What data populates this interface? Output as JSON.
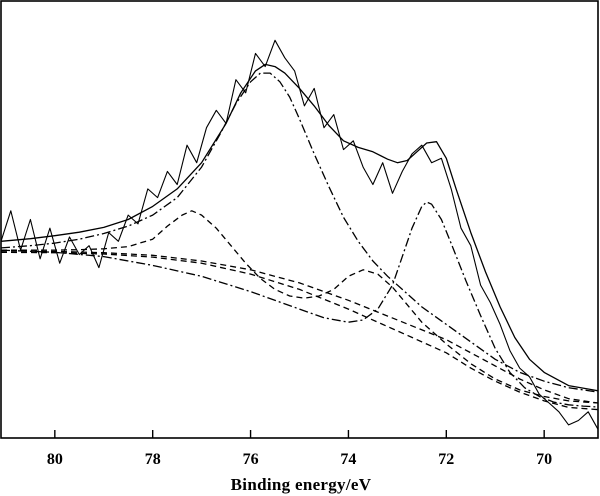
{
  "chart_data": {
    "type": "line",
    "title": "",
    "xlabel": "Binding energy/eV",
    "ylabel": "",
    "xlim": [
      81.1,
      68.9
    ],
    "ylim": [
      0,
      100
    ],
    "x_reversed": true,
    "grid": false,
    "legend": "none",
    "x_ticks": [
      {
        "value": 80,
        "label": "80"
      },
      {
        "value": 78,
        "label": "78"
      },
      {
        "value": 76,
        "label": "76"
      },
      {
        "value": 74,
        "label": "74"
      },
      {
        "value": 72,
        "label": "72"
      },
      {
        "value": 70,
        "label": "70"
      }
    ],
    "series": [
      {
        "name": "raw-spectrum",
        "style": "solid-noisy",
        "x": [
          81.1,
          80.9,
          80.7,
          80.5,
          80.3,
          80.1,
          79.9,
          79.7,
          79.5,
          79.3,
          79.1,
          78.9,
          78.7,
          78.5,
          78.3,
          78.1,
          77.9,
          77.7,
          77.5,
          77.3,
          77.1,
          76.9,
          76.7,
          76.5,
          76.3,
          76.1,
          75.9,
          75.7,
          75.5,
          75.3,
          75.1,
          74.9,
          74.7,
          74.5,
          74.3,
          74.1,
          73.9,
          73.7,
          73.5,
          73.3,
          73.1,
          72.9,
          72.7,
          72.5,
          72.3,
          72.1,
          71.9,
          71.7,
          71.5,
          71.3,
          71.1,
          70.9,
          70.7,
          70.5,
          70.3,
          70.1,
          69.9,
          69.7,
          69.5,
          69.3,
          69.1,
          68.9
        ],
        "y": [
          45,
          52,
          43,
          50,
          41,
          48,
          40,
          46,
          42,
          44,
          39,
          47,
          45,
          51,
          49,
          57,
          55,
          61,
          58,
          67,
          63,
          71,
          75,
          72,
          82,
          79,
          88,
          85,
          91,
          87,
          84,
          76,
          80,
          71,
          74,
          66,
          68,
          62,
          58,
          63,
          56,
          61,
          65,
          67,
          63,
          64,
          57,
          48,
          44,
          35,
          31,
          26,
          20,
          16,
          14,
          10,
          8,
          6,
          3,
          4,
          6,
          2
        ]
      },
      {
        "name": "fitted-envelope",
        "style": "solid",
        "x": [
          81.1,
          80.5,
          80,
          79.5,
          79,
          78.5,
          78,
          77.5,
          77,
          76.5,
          76.2,
          75.9,
          75.7,
          75.5,
          75.3,
          75,
          74.7,
          74.4,
          74.1,
          73.8,
          73.5,
          73.2,
          73,
          72.8,
          72.6,
          72.4,
          72.2,
          72,
          71.8,
          71.5,
          71.2,
          70.9,
          70.6,
          70.3,
          70,
          69.5,
          69,
          68.9
        ],
        "y": [
          45,
          45.6,
          46.3,
          47.1,
          48.2,
          50,
          53,
          57,
          63,
          72,
          79,
          84,
          85.5,
          85,
          83.5,
          80,
          76,
          71.5,
          68,
          66.5,
          65.5,
          63.8,
          63,
          63.5,
          65.5,
          67.5,
          67.8,
          64,
          57,
          47,
          38,
          30,
          23,
          18,
          15,
          12,
          11,
          10.8
        ]
      },
      {
        "name": "component-peak-75.7",
        "style": "dash-dot",
        "x": [
          81.1,
          80.5,
          80,
          79.5,
          79,
          78.5,
          78,
          77.5,
          77,
          76.6,
          76.3,
          76,
          75.8,
          75.6,
          75.4,
          75.2,
          75,
          74.7,
          74.4,
          74.1,
          73.8,
          73.5,
          73.2,
          72.9,
          72.5,
          72,
          71.5,
          71,
          70.5,
          70,
          69.5,
          68.9
        ],
        "y": [
          43.5,
          44,
          44.6,
          45.5,
          46.8,
          48.5,
          51,
          55,
          62,
          70,
          76.5,
          81.5,
          83.5,
          83.5,
          81.5,
          78,
          73,
          65,
          57.5,
          50.5,
          45,
          40.5,
          37,
          34,
          30,
          26,
          22,
          18,
          15,
          13,
          11.5,
          10.5
        ]
      },
      {
        "name": "component-peak-77.3",
        "style": "dashed",
        "x": [
          81.1,
          80.5,
          80,
          79.5,
          79,
          78.5,
          78,
          77.7,
          77.4,
          77.2,
          77,
          76.7,
          76.4,
          76.1,
          75.8,
          75.5,
          75.2,
          74.9,
          74.6,
          74.3,
          74,
          73.7,
          73.4,
          73.1,
          72.8,
          72.5,
          72,
          71.5,
          71,
          70.5,
          70,
          69.5,
          68.9
        ],
        "y": [
          43,
          43,
          43,
          43.1,
          43.3,
          43.8,
          45.5,
          48.5,
          51,
          52,
          51,
          48,
          44,
          40,
          36.5,
          34,
          32.5,
          32,
          32.5,
          34,
          37,
          38.5,
          37.5,
          34.5,
          30.5,
          26.5,
          21.5,
          17,
          13.5,
          11,
          9.5,
          8.5,
          8
        ]
      },
      {
        "name": "component-peak-72.4",
        "style": "dash-dot",
        "x": [
          81.1,
          80,
          79,
          78,
          77,
          76,
          75,
          74.5,
          74,
          73.7,
          73.4,
          73.1,
          72.9,
          72.7,
          72.5,
          72.4,
          72.3,
          72.1,
          71.9,
          71.6,
          71.3,
          71,
          70.7,
          70.4,
          70.1,
          69.8,
          69.5,
          69.2,
          68.9
        ],
        "y": [
          43,
          42.5,
          41.5,
          39.5,
          37,
          33.5,
          29.5,
          27.5,
          26.5,
          27,
          29.5,
          35,
          41.5,
          48,
          53,
          54,
          53.5,
          50,
          44.5,
          36,
          28,
          20.5,
          15,
          11.5,
          9.5,
          8.2,
          7.6,
          7.3,
          7.1
        ]
      },
      {
        "name": "background-upper",
        "style": "dashed",
        "x": [
          81.1,
          80,
          79,
          78,
          77,
          76,
          75,
          74,
          73,
          72,
          71.5,
          71,
          70.5,
          70,
          69.5,
          68.9
        ],
        "y": [
          42.8,
          42.7,
          42.4,
          41.8,
          40.5,
          38.5,
          35.5,
          31.5,
          27,
          22.5,
          19.5,
          16.5,
          13.5,
          11,
          9,
          8
        ]
      },
      {
        "name": "background-lower",
        "style": "dashed",
        "x": [
          81.1,
          80,
          79,
          78,
          77,
          76,
          75,
          74,
          73,
          72,
          71.5,
          71,
          70.5,
          70,
          69.5,
          68.9
        ],
        "y": [
          42.5,
          42.4,
          42.1,
          41.4,
          40,
          37.5,
          34,
          29.5,
          24.5,
          19.5,
          16,
          13,
          10.5,
          8.5,
          7,
          6.5
        ]
      }
    ]
  }
}
